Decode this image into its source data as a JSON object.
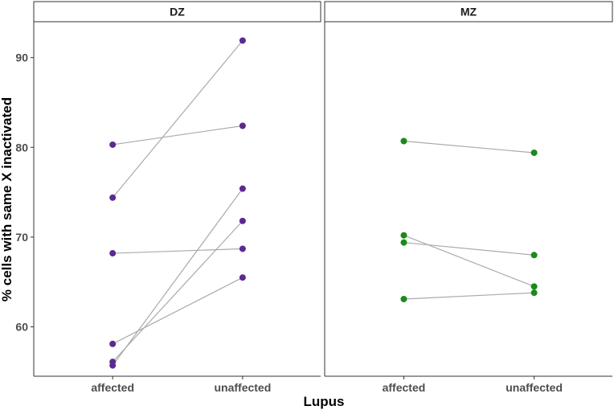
{
  "chart_data": {
    "type": "scatter",
    "chart_subtype": "paired-points-faceted",
    "xlabel": "Lupus",
    "ylabel": "% cells with same X inactivated",
    "categories": [
      "affected",
      "unaffected"
    ],
    "ylim": [
      54.5,
      94
    ],
    "yticks": [
      60,
      70,
      80,
      90
    ],
    "grid": false,
    "connector_color": "#aaaaaa",
    "panels": [
      {
        "facet": "DZ",
        "point_color": "#5b2a91",
        "pairs": [
          {
            "affected": 80.3,
            "unaffected": 82.4
          },
          {
            "affected": 74.4,
            "unaffected": 91.9
          },
          {
            "affected": 68.2,
            "unaffected": 68.7
          },
          {
            "affected": 58.1,
            "unaffected": 65.5
          },
          {
            "affected": 56.1,
            "unaffected": 71.8
          },
          {
            "affected": 55.7,
            "unaffected": 75.4
          }
        ]
      },
      {
        "facet": "MZ",
        "point_color": "#1a8a1a",
        "pairs": [
          {
            "affected": 80.7,
            "unaffected": 79.4
          },
          {
            "affected": 70.2,
            "unaffected": 64.5
          },
          {
            "affected": 69.4,
            "unaffected": 68.0
          },
          {
            "affected": 63.1,
            "unaffected": 63.8
          }
        ]
      }
    ]
  }
}
